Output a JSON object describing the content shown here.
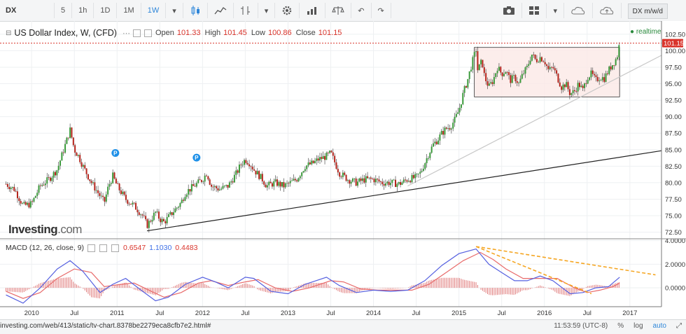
{
  "toolbar": {
    "symbol": "DX",
    "intervals": [
      "5",
      "1h",
      "1D",
      "1M",
      "1W"
    ],
    "active_interval": "1W",
    "symbol_tag": "DX m/w/d",
    "icons": [
      "candles-icon",
      "line-chart-icon",
      "indicators-icon",
      "settings-icon",
      "compare-icon",
      "scale-icon",
      "undo-icon",
      "redo-icon",
      "camera-icon",
      "layout-icon",
      "cloud-save-icon",
      "cloud-load-icon"
    ]
  },
  "legend": {
    "title": "US Dollar Index, W, (CFD)",
    "open_label": "Open",
    "open": "101.33",
    "high_label": "High",
    "high": "101.45",
    "low_label": "Low",
    "low": "100.86",
    "close_label": "Close",
    "close": "101.15",
    "realtime": "realtime"
  },
  "macd_legend": {
    "title": "MACD (12, 26, close, 9)",
    "v1": "0.6547",
    "v2": "1.1030",
    "v3": "0.4483"
  },
  "logo": {
    "brand": "Investing",
    "suffix": ".com"
  },
  "status": {
    "url": "investing.com/web/413/static/tv-chart.8378be2279eca8cfb7e2.html#",
    "time": "11:53:59 (UTC-8)",
    "percent": "%",
    "log": "log",
    "auto": "auto"
  },
  "colors": {
    "up": "#3a9a3a",
    "down": "#b5241c",
    "macd": "#5560e0",
    "signal": "#e86a6a",
    "hist": "#e07a7a",
    "trend_orange": "#f5a623"
  },
  "chart_data": [
    {
      "type": "candlestick",
      "xlabel": "",
      "ylabel": "",
      "x_tick_labels": [
        "2010",
        "Jul",
        "2011",
        "Jul",
        "2012",
        "Jul",
        "2013",
        "Jul",
        "2014",
        "Jul",
        "2015",
        "Jul",
        "2016",
        "Jul",
        "2017"
      ],
      "y_ticks": [
        72.5,
        75.0,
        77.5,
        80.0,
        82.5,
        85.0,
        87.5,
        90.0,
        92.5,
        95.0,
        97.5,
        100.0,
        102.5
      ],
      "y_tick_labels": [
        "72.50",
        "75.00",
        "77.50",
        "80.00",
        "82.50",
        "85.00",
        "87.50",
        "90.00",
        "92.50",
        "95.00",
        "97.50",
        "100.00",
        "102.50"
      ],
      "ylim": [
        71.5,
        104.5
      ],
      "last_price_label": "101.15",
      "last_price": 101.15,
      "markers": [
        "P",
        "P"
      ],
      "close_path": [
        [
          2009.7,
          79.8
        ],
        [
          2009.8,
          79.0
        ],
        [
          2009.9,
          76.5
        ],
        [
          2010.0,
          76.8
        ],
        [
          2010.1,
          79.5
        ],
        [
          2010.2,
          80.5
        ],
        [
          2010.3,
          82.0
        ],
        [
          2010.4,
          86.0
        ],
        [
          2010.45,
          88.0
        ],
        [
          2010.5,
          85.0
        ],
        [
          2010.55,
          84.0
        ],
        [
          2010.6,
          82.5
        ],
        [
          2010.7,
          80.0
        ],
        [
          2010.8,
          78.0
        ],
        [
          2010.85,
          77.0
        ],
        [
          2010.9,
          79.5
        ],
        [
          2010.95,
          81.0
        ],
        [
          2011.0,
          79.5
        ],
        [
          2011.1,
          77.5
        ],
        [
          2011.2,
          76.5
        ],
        [
          2011.3,
          75.0
        ],
        [
          2011.35,
          73.5
        ],
        [
          2011.4,
          74.5
        ],
        [
          2011.45,
          75.5
        ],
        [
          2011.5,
          74.5
        ],
        [
          2011.55,
          74.0
        ],
        [
          2011.65,
          75.5
        ],
        [
          2011.75,
          77.0
        ],
        [
          2011.8,
          78.5
        ],
        [
          2011.9,
          79.5
        ],
        [
          2012.0,
          80.5
        ],
        [
          2012.05,
          81.5
        ],
        [
          2012.1,
          79.5
        ],
        [
          2012.2,
          79.0
        ],
        [
          2012.3,
          79.5
        ],
        [
          2012.4,
          81.5
        ],
        [
          2012.45,
          82.8
        ],
        [
          2012.5,
          83.5
        ],
        [
          2012.55,
          83.0
        ],
        [
          2012.6,
          82.0
        ],
        [
          2012.7,
          80.5
        ],
        [
          2012.75,
          79.5
        ],
        [
          2012.85,
          80.0
        ],
        [
          2012.95,
          79.5
        ],
        [
          2013.0,
          79.8
        ],
        [
          2013.1,
          80.5
        ],
        [
          2013.2,
          82.5
        ],
        [
          2013.3,
          83.0
        ],
        [
          2013.35,
          83.5
        ],
        [
          2013.45,
          84.0
        ],
        [
          2013.5,
          84.5
        ],
        [
          2013.55,
          83.0
        ],
        [
          2013.6,
          81.5
        ],
        [
          2013.7,
          80.5
        ],
        [
          2013.8,
          80.0
        ],
        [
          2013.9,
          80.5
        ],
        [
          2014.0,
          80.5
        ],
        [
          2014.1,
          80.0
        ],
        [
          2014.2,
          80.0
        ],
        [
          2014.3,
          79.8
        ],
        [
          2014.4,
          80.5
        ],
        [
          2014.5,
          80.8
        ],
        [
          2014.55,
          81.5
        ],
        [
          2014.6,
          83.0
        ],
        [
          2014.65,
          84.5
        ],
        [
          2014.7,
          85.8
        ],
        [
          2014.75,
          86.5
        ],
        [
          2014.8,
          87.5
        ],
        [
          2014.85,
          88.2
        ],
        [
          2014.9,
          88.5
        ],
        [
          2014.95,
          89.5
        ],
        [
          2015.0,
          91.0
        ],
        [
          2015.05,
          93.5
        ],
        [
          2015.1,
          95.5
        ],
        [
          2015.15,
          98.0
        ],
        [
          2015.2,
          100.2
        ],
        [
          2015.22,
          97.0
        ],
        [
          2015.27,
          98.5
        ],
        [
          2015.3,
          96.0
        ],
        [
          2015.35,
          94.5
        ],
        [
          2015.4,
          95.5
        ],
        [
          2015.45,
          97.5
        ],
        [
          2015.5,
          96.5
        ],
        [
          2015.55,
          97.0
        ],
        [
          2015.6,
          95.5
        ],
        [
          2015.65,
          96.0
        ],
        [
          2015.7,
          95.0
        ],
        [
          2015.75,
          96.5
        ],
        [
          2015.8,
          97.5
        ],
        [
          2015.85,
          99.5
        ],
        [
          2015.9,
          98.5
        ],
        [
          2015.95,
          99.0
        ],
        [
          2016.0,
          98.5
        ],
        [
          2016.05,
          97.0
        ],
        [
          2016.1,
          97.5
        ],
        [
          2016.15,
          96.0
        ],
        [
          2016.2,
          94.5
        ],
        [
          2016.25,
          95.0
        ],
        [
          2016.3,
          93.5
        ],
        [
          2016.35,
          93.8
        ],
        [
          2016.4,
          95.0
        ],
        [
          2016.45,
          94.0
        ],
        [
          2016.5,
          96.0
        ],
        [
          2016.55,
          96.5
        ],
        [
          2016.6,
          95.5
        ],
        [
          2016.65,
          96.0
        ],
        [
          2016.7,
          95.8
        ],
        [
          2016.75,
          97.0
        ],
        [
          2016.8,
          98.0
        ],
        [
          2016.85,
          99.0
        ],
        [
          2016.88,
          101.2
        ]
      ],
      "annotations": [
        {
          "type": "rectangle",
          "x": [
            2015.18,
            2016.88
          ],
          "y": [
            93.0,
            100.5
          ]
        },
        {
          "type": "trendline",
          "x": [
            2011.35,
            2017.4
          ],
          "y": [
            72.7,
            84.9
          ]
        },
        {
          "type": "trendline",
          "x": [
            2014.4,
            2017.4
          ],
          "y": [
            79.5,
            99.5
          ]
        },
        {
          "type": "horizontal_line",
          "y": 101.15
        }
      ]
    },
    {
      "type": "line",
      "title": "MACD (12, 26, close, 9)",
      "y_ticks": [
        0.0,
        2.0,
        4.0
      ],
      "y_tick_labels": [
        "0.0000",
        "2.0000",
        "4.0000"
      ],
      "ylim": [
        -1.6,
        4.1
      ],
      "series": [
        {
          "name": "",
          "values": [
            [
              2009.7,
              -0.6
            ],
            [
              2009.9,
              -1.3
            ],
            [
              2010.1,
              0.0
            ],
            [
              2010.3,
              1.6
            ],
            [
              2010.45,
              2.3
            ],
            [
              2010.6,
              1.4
            ],
            [
              2010.8,
              -0.4
            ],
            [
              2010.95,
              0.3
            ],
            [
              2011.1,
              0.8
            ],
            [
              2011.3,
              -0.3
            ],
            [
              2011.45,
              -1.1
            ],
            [
              2011.6,
              -0.8
            ],
            [
              2011.8,
              0.3
            ],
            [
              2012.0,
              0.9
            ],
            [
              2012.15,
              0.5
            ],
            [
              2012.3,
              0.0
            ],
            [
              2012.5,
              0.9
            ],
            [
              2012.6,
              0.8
            ],
            [
              2012.8,
              -0.3
            ],
            [
              2013.0,
              -0.5
            ],
            [
              2013.2,
              0.3
            ],
            [
              2013.45,
              0.9
            ],
            [
              2013.6,
              0.2
            ],
            [
              2013.8,
              -0.4
            ],
            [
              2014.0,
              -0.2
            ],
            [
              2014.2,
              -0.3
            ],
            [
              2014.4,
              -0.2
            ],
            [
              2014.6,
              0.6
            ],
            [
              2014.8,
              1.9
            ],
            [
              2015.0,
              2.9
            ],
            [
              2015.2,
              3.3
            ],
            [
              2015.35,
              2.0
            ],
            [
              2015.5,
              1.3
            ],
            [
              2015.65,
              0.6
            ],
            [
              2015.8,
              0.6
            ],
            [
              2015.95,
              1.0
            ],
            [
              2016.1,
              0.6
            ],
            [
              2016.3,
              -0.5
            ],
            [
              2016.45,
              -0.4
            ],
            [
              2016.6,
              0.0
            ],
            [
              2016.75,
              0.1
            ],
            [
              2016.88,
              0.9
            ]
          ]
        },
        {
          "name": "",
          "values": [
            [
              2009.7,
              -0.3
            ],
            [
              2009.9,
              -0.9
            ],
            [
              2010.1,
              -0.4
            ],
            [
              2010.3,
              0.8
            ],
            [
              2010.5,
              1.6
            ],
            [
              2010.7,
              1.3
            ],
            [
              2010.85,
              0.1
            ],
            [
              2011.05,
              0.3
            ],
            [
              2011.2,
              0.4
            ],
            [
              2011.4,
              -0.3
            ],
            [
              2011.55,
              -0.8
            ],
            [
              2011.75,
              -0.4
            ],
            [
              2011.95,
              0.4
            ],
            [
              2012.1,
              0.6
            ],
            [
              2012.3,
              0.2
            ],
            [
              2012.5,
              0.5
            ],
            [
              2012.65,
              0.7
            ],
            [
              2012.85,
              0.0
            ],
            [
              2013.05,
              -0.3
            ],
            [
              2013.25,
              0.0
            ],
            [
              2013.5,
              0.6
            ],
            [
              2013.65,
              0.5
            ],
            [
              2013.85,
              -0.1
            ],
            [
              2014.05,
              -0.2
            ],
            [
              2014.25,
              -0.2
            ],
            [
              2014.45,
              -0.2
            ],
            [
              2014.65,
              0.3
            ],
            [
              2014.85,
              1.3
            ],
            [
              2015.05,
              2.3
            ],
            [
              2015.25,
              3.0
            ],
            [
              2015.4,
              2.4
            ],
            [
              2015.55,
              1.6
            ],
            [
              2015.75,
              0.8
            ],
            [
              2015.95,
              0.8
            ],
            [
              2016.15,
              0.8
            ],
            [
              2016.35,
              0.0
            ],
            [
              2016.5,
              -0.4
            ],
            [
              2016.65,
              -0.2
            ],
            [
              2016.8,
              0.1
            ],
            [
              2016.88,
              0.4
            ]
          ]
        }
      ],
      "annotations": [
        {
          "type": "trendline",
          "x": [
            2015.2,
            2017.3
          ],
          "y": [
            3.5,
            1.1
          ]
        },
        {
          "type": "trendline",
          "x": [
            2015.2,
            2016.55
          ],
          "y": [
            3.5,
            -0.5
          ]
        }
      ]
    }
  ]
}
